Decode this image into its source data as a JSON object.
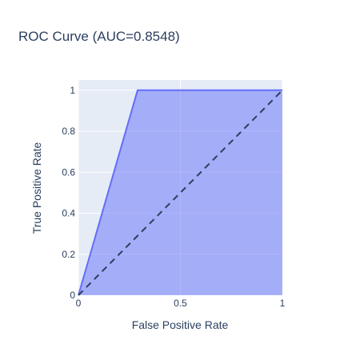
{
  "chart_data": {
    "type": "area",
    "title": "ROC Curve (AUC=0.8548)",
    "xlabel": "False Positive Rate",
    "ylabel": "True Positive Rate",
    "xlim": [
      0,
      1
    ],
    "ylim": [
      0,
      1.05
    ],
    "x_ticks": [
      0,
      0.5,
      1
    ],
    "x_tick_labels": [
      "0",
      "0.5",
      "1"
    ],
    "y_ticks": [
      0,
      0.2,
      0.4,
      0.6,
      0.8,
      1
    ],
    "y_tick_labels": [
      "0",
      "0.2",
      "0.4",
      "0.6",
      "0.8",
      "1"
    ],
    "grid": true,
    "legend": false,
    "series": [
      {
        "style": "filled-line",
        "color": "#636efa",
        "fill_color": "rgba(99,110,250,0.5)",
        "x": [
          0,
          0.29,
          1
        ],
        "y": [
          0,
          1,
          1
        ]
      },
      {
        "style": "dashed-line",
        "color": "#2a3f5f",
        "x": [
          0,
          1
        ],
        "y": [
          0,
          1
        ]
      }
    ],
    "plot_background": "#e5ecf6",
    "grid_color": "#ffffff"
  }
}
